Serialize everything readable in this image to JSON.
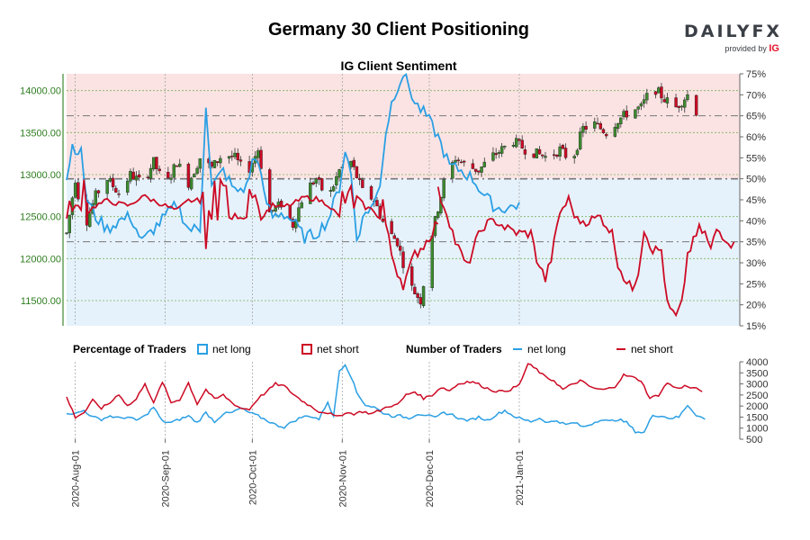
{
  "header": {
    "title": "Germany 30 Client Positioning",
    "brand": "DAILYFX",
    "brand_sub": "provided by",
    "brand_sub_mark": "IG"
  },
  "colors": {
    "long": "#2a9fe4",
    "short": "#cc0a24",
    "candle_up": "#3c8a2e",
    "candle_down": "#cc0a24",
    "bg_long": "#e6f2fb",
    "bg_short": "#fbe3e3"
  },
  "legend": {
    "pct_label": "Percentage of Traders",
    "num_label": "Number of Traders",
    "net_long": "net long",
    "net_short": "net short"
  },
  "chart_data": [
    {
      "type": "candlestick",
      "title": "IG Client Sentiment",
      "y_left_ticks": [
        "11500.00",
        "12000.00",
        "12500.00",
        "13000.00",
        "13500.00",
        "14000.00"
      ],
      "y_left_values": [
        11500,
        12000,
        12500,
        13000,
        13500,
        14000
      ],
      "ylim_left": [
        11200,
        14200
      ],
      "y_right_ticks": [
        "15%",
        "20%",
        "25%",
        "30%",
        "35%",
        "40%",
        "45%",
        "50%",
        "55%",
        "60%",
        "65%",
        "70%",
        "75%"
      ],
      "ylim_right": [
        15,
        75
      ],
      "reference_lines_pct": [
        50,
        35,
        65
      ],
      "price_anchors": [
        [
          0,
          12300
        ],
        [
          3,
          12950
        ],
        [
          6,
          12350
        ],
        [
          10,
          12750
        ],
        [
          14,
          12950
        ],
        [
          18,
          12780
        ],
        [
          22,
          13000
        ],
        [
          26,
          12900
        ],
        [
          30,
          13150
        ],
        [
          34,
          12850
        ],
        [
          38,
          13150
        ],
        [
          42,
          12900
        ],
        [
          46,
          13200
        ],
        [
          50,
          13080
        ],
        [
          54,
          13250
        ],
        [
          58,
          13200
        ],
        [
          62,
          13000
        ],
        [
          66,
          13300
        ],
        [
          70,
          12550
        ],
        [
          74,
          12650
        ],
        [
          78,
          12400
        ],
        [
          82,
          12800
        ],
        [
          86,
          12950
        ],
        [
          90,
          12700
        ],
        [
          94,
          13050
        ],
        [
          98,
          13150
        ],
        [
          102,
          12800
        ],
        [
          106,
          12700
        ],
        [
          110,
          12350
        ],
        [
          114,
          12200
        ],
        [
          118,
          11700
        ],
        [
          122,
          11500
        ],
        [
          126,
          12300
        ],
        [
          130,
          12900
        ],
        [
          134,
          13200
        ],
        [
          138,
          13100
        ],
        [
          142,
          13050
        ],
        [
          146,
          13200
        ],
        [
          150,
          13300
        ],
        [
          154,
          13400
        ],
        [
          158,
          13300
        ],
        [
          162,
          13250
        ],
        [
          166,
          13200
        ],
        [
          170,
          13300
        ],
        [
          174,
          13150
        ],
        [
          178,
          13550
        ],
        [
          182,
          13600
        ],
        [
          186,
          13500
        ],
        [
          190,
          13650
        ],
        [
          194,
          13750
        ],
        [
          198,
          13800
        ],
        [
          202,
          14050
        ],
        [
          206,
          13900
        ],
        [
          210,
          13800
        ],
        [
          214,
          13950
        ],
        [
          217,
          13750
        ]
      ],
      "pct_long_anchors": [
        [
          0,
          50
        ],
        [
          2,
          58
        ],
        [
          5,
          56
        ],
        [
          7,
          45
        ],
        [
          10,
          41
        ],
        [
          14,
          38
        ],
        [
          18,
          40
        ],
        [
          22,
          41
        ],
        [
          26,
          35
        ],
        [
          30,
          38
        ],
        [
          34,
          41
        ],
        [
          38,
          44
        ],
        [
          42,
          38
        ],
        [
          46,
          38
        ],
        [
          48,
          68
        ],
        [
          50,
          48
        ],
        [
          54,
          52
        ],
        [
          58,
          47
        ],
        [
          62,
          48
        ],
        [
          64,
          54
        ],
        [
          66,
          55
        ],
        [
          68,
          46
        ],
        [
          71,
          41
        ],
        [
          74,
          42
        ],
        [
          78,
          40
        ],
        [
          82,
          36
        ],
        [
          86,
          37
        ],
        [
          90,
          40
        ],
        [
          94,
          48
        ],
        [
          96,
          57
        ],
        [
          98,
          51
        ],
        [
          100,
          36
        ],
        [
          103,
          42
        ],
        [
          106,
          44
        ],
        [
          108,
          49
        ],
        [
          110,
          61
        ],
        [
          112,
          68
        ],
        [
          114,
          72
        ],
        [
          116,
          75
        ],
        [
          118,
          72
        ],
        [
          120,
          68
        ],
        [
          124,
          65
        ],
        [
          128,
          60
        ],
        [
          132,
          53
        ],
        [
          136,
          52
        ],
        [
          140,
          50
        ],
        [
          144,
          46
        ],
        [
          148,
          43
        ],
        [
          152,
          43
        ],
        [
          156,
          44
        ]
      ],
      "pct_short_anchors": [
        [
          128,
          47
        ],
        [
          131,
          42
        ],
        [
          134,
          35
        ],
        [
          138,
          29
        ],
        [
          141,
          35
        ],
        [
          144,
          39
        ],
        [
          148,
          40
        ],
        [
          152,
          38
        ],
        [
          156,
          37
        ],
        [
          160,
          37
        ],
        [
          162,
          31
        ],
        [
          165,
          26
        ],
        [
          167,
          31
        ],
        [
          170,
          42
        ],
        [
          173,
          45
        ],
        [
          176,
          40
        ],
        [
          180,
          40
        ],
        [
          184,
          41
        ],
        [
          188,
          37
        ],
        [
          190,
          30
        ],
        [
          193,
          25
        ],
        [
          195,
          24
        ],
        [
          197,
          28
        ],
        [
          199,
          38
        ],
        [
          202,
          33
        ],
        [
          205,
          33
        ],
        [
          207,
          20
        ],
        [
          210,
          17
        ],
        [
          212,
          20
        ],
        [
          214,
          32
        ],
        [
          216,
          35
        ],
        [
          218,
          38
        ],
        [
          220,
          37
        ],
        [
          222,
          33
        ],
        [
          224,
          38
        ],
        [
          227,
          36
        ],
        [
          230,
          34
        ]
      ],
      "x_tick_labels": [
        "2020-Aug-01",
        "2020-Sep-01",
        "2020-Oct-01",
        "2020-Nov-01",
        "2020-Dec-01",
        "2021-Jan-01"
      ],
      "x_tick_days": [
        0,
        31,
        61,
        92,
        122,
        153
      ]
    },
    {
      "type": "line",
      "title": "Number of Traders",
      "series_names": [
        "net long",
        "net short"
      ],
      "y_ticks": [
        "500",
        "1000",
        "1500",
        "2000",
        "2500",
        "3000",
        "3500",
        "4000"
      ],
      "ylim": [
        500,
        4000
      ],
      "long_anchors": [
        [
          0,
          1700
        ],
        [
          3,
          1650
        ],
        [
          6,
          1800
        ],
        [
          9,
          1500
        ],
        [
          12,
          1400
        ],
        [
          15,
          1550
        ],
        [
          18,
          1450
        ],
        [
          21,
          1500
        ],
        [
          24,
          1350
        ],
        [
          27,
          1550
        ],
        [
          30,
          1950
        ],
        [
          33,
          1300
        ],
        [
          36,
          1250
        ],
        [
          39,
          1400
        ],
        [
          42,
          1550
        ],
        [
          45,
          1250
        ],
        [
          48,
          1700
        ],
        [
          51,
          1300
        ],
        [
          54,
          1650
        ],
        [
          57,
          1700
        ],
        [
          60,
          1900
        ],
        [
          63,
          1700
        ],
        [
          66,
          1550
        ],
        [
          69,
          1350
        ],
        [
          72,
          1150
        ],
        [
          75,
          1050
        ],
        [
          78,
          1300
        ],
        [
          81,
          1500
        ],
        [
          84,
          1550
        ],
        [
          87,
          1400
        ],
        [
          90,
          2200
        ],
        [
          92,
          1500
        ],
        [
          94,
          3600
        ],
        [
          96,
          3900
        ],
        [
          98,
          3350
        ],
        [
          100,
          2600
        ],
        [
          103,
          2050
        ],
        [
          106,
          1950
        ],
        [
          109,
          1700
        ],
        [
          112,
          1550
        ],
        [
          115,
          1550
        ],
        [
          118,
          1450
        ],
        [
          121,
          1650
        ],
        [
          124,
          1600
        ],
        [
          127,
          1450
        ],
        [
          130,
          1700
        ],
        [
          133,
          1600
        ],
        [
          136,
          1400
        ],
        [
          139,
          1350
        ],
        [
          142,
          1500
        ],
        [
          145,
          1350
        ],
        [
          148,
          1600
        ],
        [
          151,
          1800
        ],
        [
          154,
          1550
        ],
        [
          157,
          1400
        ],
        [
          160,
          1300
        ],
        [
          163,
          1450
        ],
        [
          166,
          1250
        ],
        [
          169,
          1350
        ],
        [
          172,
          1150
        ],
        [
          175,
          1250
        ],
        [
          178,
          1050
        ],
        [
          181,
          1200
        ],
        [
          184,
          1400
        ],
        [
          187,
          1300
        ],
        [
          190,
          1400
        ],
        [
          193,
          1250
        ],
        [
          196,
          850
        ],
        [
          199,
          800
        ],
        [
          202,
          1600
        ],
        [
          205,
          1550
        ],
        [
          208,
          1450
        ],
        [
          211,
          1500
        ],
        [
          214,
          2050
        ],
        [
          217,
          1600
        ],
        [
          220,
          1400
        ]
      ],
      "short_anchors": [
        [
          0,
          2400
        ],
        [
          3,
          1500
        ],
        [
          6,
          1700
        ],
        [
          9,
          2250
        ],
        [
          12,
          1900
        ],
        [
          15,
          2150
        ],
        [
          18,
          2550
        ],
        [
          21,
          2000
        ],
        [
          24,
          2300
        ],
        [
          27,
          3050
        ],
        [
          30,
          2100
        ],
        [
          33,
          3100
        ],
        [
          36,
          2150
        ],
        [
          39,
          2300
        ],
        [
          42,
          3050
        ],
        [
          45,
          2100
        ],
        [
          48,
          2750
        ],
        [
          51,
          2300
        ],
        [
          54,
          2500
        ],
        [
          57,
          2150
        ],
        [
          60,
          1900
        ],
        [
          63,
          1850
        ],
        [
          66,
          2350
        ],
        [
          69,
          2650
        ],
        [
          72,
          3000
        ],
        [
          75,
          2900
        ],
        [
          78,
          2550
        ],
        [
          81,
          2250
        ],
        [
          84,
          2000
        ],
        [
          87,
          1750
        ],
        [
          90,
          1700
        ],
        [
          93,
          1500
        ],
        [
          96,
          1700
        ],
        [
          99,
          1650
        ],
        [
          102,
          1750
        ],
        [
          105,
          1650
        ],
        [
          108,
          1800
        ],
        [
          111,
          2000
        ],
        [
          114,
          2050
        ],
        [
          117,
          2500
        ],
        [
          120,
          2650
        ],
        [
          123,
          2350
        ],
        [
          126,
          2500
        ],
        [
          129,
          2850
        ],
        [
          132,
          2700
        ],
        [
          135,
          3000
        ],
        [
          138,
          3100
        ],
        [
          141,
          3050
        ],
        [
          144,
          2850
        ],
        [
          147,
          2700
        ],
        [
          150,
          2650
        ],
        [
          153,
          2750
        ],
        [
          156,
          2950
        ],
        [
          159,
          3900
        ],
        [
          162,
          3650
        ],
        [
          165,
          3300
        ],
        [
          168,
          3150
        ],
        [
          171,
          2750
        ],
        [
          174,
          2950
        ],
        [
          177,
          3150
        ],
        [
          180,
          2900
        ],
        [
          183,
          2750
        ],
        [
          186,
          2750
        ],
        [
          189,
          2900
        ],
        [
          192,
          3400
        ],
        [
          195,
          3300
        ],
        [
          198,
          3150
        ],
        [
          201,
          2350
        ],
        [
          204,
          2500
        ],
        [
          207,
          3050
        ],
        [
          210,
          2800
        ],
        [
          213,
          2900
        ],
        [
          216,
          2800
        ],
        [
          219,
          2700
        ]
      ],
      "x_tick_labels": [
        "2020-Aug-01",
        "2020-Sep-01",
        "2020-Oct-01",
        "2020-Nov-01",
        "2020-Dec-01",
        "2021-Jan-01"
      ]
    }
  ]
}
